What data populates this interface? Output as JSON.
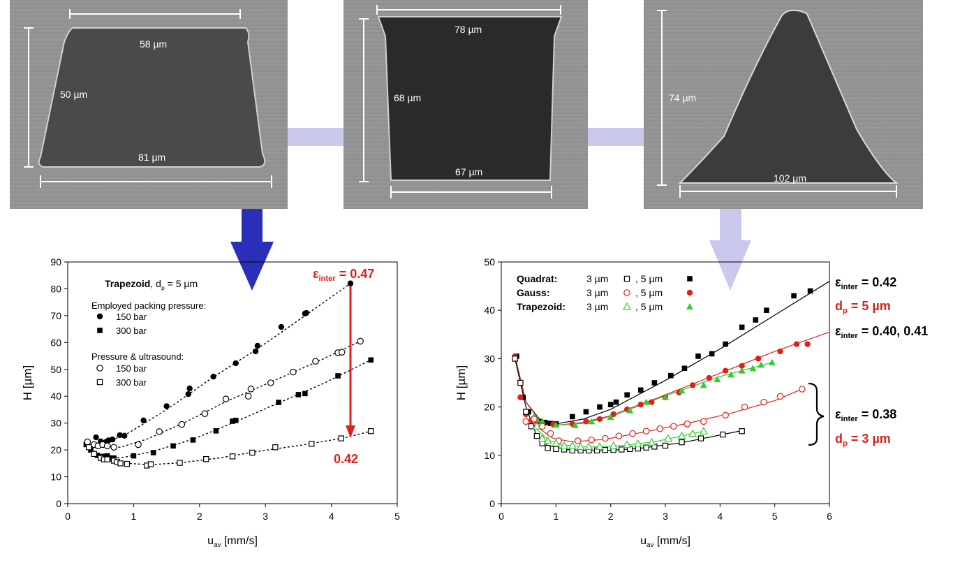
{
  "sem_images": [
    {
      "top_width": "58 µm",
      "height": "50 µm",
      "bottom_width": "81 µm"
    },
    {
      "top_width": "78 µm",
      "height": "68 µm",
      "bottom_width": "67 µm"
    },
    {
      "height": "74 µm",
      "bottom_width": "102 µm"
    }
  ],
  "colors": {
    "dark_arrow": "#2b2fb8",
    "light_arrow": "#c9c9ee",
    "red": "#e0201b",
    "green": "#33cc33",
    "black": "#000000"
  },
  "chart_data": [
    {
      "type": "scatter",
      "xlabel_main": "u",
      "xlabel_sub": "av",
      "xlabel_unit": "[mm/s]",
      "ylabel": "H  [µm]",
      "xlim": [
        0,
        5
      ],
      "ylim": [
        0,
        90
      ],
      "xticks": [
        "0",
        "1",
        "2",
        "3",
        "4",
        "5"
      ],
      "yticks": [
        "0",
        "10",
        "20",
        "30",
        "40",
        "50",
        "60",
        "70",
        "80",
        "90"
      ],
      "legend": {
        "title_bold": "Trapezoid",
        "title_rest": ", d",
        "title_sub": "p",
        "title_end": " = 5 µm",
        "group1": "Employed packing pressure:",
        "group2": "Pressure & ultrasound:",
        "entries": [
          "150 bar",
          "300 bar",
          "150 bar",
          "300 bar"
        ]
      },
      "annot_top_eps": "ε",
      "annot_top_sub": "inter",
      "annot_top_val": " = 0.47",
      "annot_bottom": "0.42",
      "series": [
        {
          "marker": "filled-circle",
          "x": [
            0.29,
            0.43,
            0.5,
            0.58,
            0.62,
            0.68,
            0.79,
            0.86,
            1.15,
            1.5,
            1.83,
            1.85,
            2.21,
            2.55,
            2.85,
            2.88,
            3.24,
            3.6,
            3.62,
            4.29
          ],
          "y": [
            22.5,
            24.7,
            23.2,
            23,
            23.6,
            23.9,
            25.5,
            25.3,
            31,
            36.3,
            40.8,
            42.9,
            47.3,
            52.3,
            56.7,
            58.8,
            65.8,
            70.8,
            71,
            82
          ]
        },
        {
          "marker": "filled-square",
          "x": [
            0.28,
            0.35,
            0.4,
            0.45,
            0.5,
            0.55,
            0.6,
            0.64,
            0.7,
            1.0,
            1.3,
            1.6,
            1.9,
            2.25,
            2.5,
            2.55,
            3.2,
            3.5,
            3.6,
            4.1,
            4.6
          ],
          "y": [
            22,
            20,
            18.5,
            18,
            17.5,
            17.6,
            17.8,
            17,
            17,
            17.8,
            19,
            21.5,
            23.7,
            27.1,
            30.7,
            31,
            37.7,
            40.6,
            41,
            47.6,
            53.5
          ]
        },
        {
          "marker": "open-circle",
          "x": [
            0.3,
            0.4,
            0.46,
            0.53,
            0.6,
            0.7,
            1.07,
            1.39,
            1.73,
            2.08,
            2.4,
            2.74,
            2.78,
            3.08,
            3.42,
            3.76,
            4.1,
            4.16,
            4.44
          ],
          "y": [
            23,
            22,
            21.5,
            22,
            21.5,
            21,
            22,
            26.8,
            29.5,
            33.5,
            39,
            40,
            42.7,
            45,
            49,
            53,
            56.2,
            56.4,
            60.5
          ]
        },
        {
          "marker": "open-square",
          "x": [
            0.32,
            0.4,
            0.5,
            0.55,
            0.6,
            0.7,
            0.75,
            0.8,
            0.9,
            1.2,
            1.26,
            1.7,
            2.1,
            2.5,
            2.8,
            3.15,
            3.7,
            4.15,
            4.6
          ],
          "y": [
            21,
            18.5,
            17,
            16.5,
            16.5,
            16,
            15.5,
            15,
            14.8,
            14.2,
            14.7,
            15.2,
            16.6,
            17.6,
            19,
            21,
            22.3,
            24.3,
            27
          ]
        }
      ]
    },
    {
      "type": "scatter",
      "xlabel_main": "u",
      "xlabel_sub": "av",
      "xlabel_unit": "[mm/s]",
      "ylabel": "H  [µm]",
      "xlim": [
        0,
        6
      ],
      "ylim": [
        0,
        50
      ],
      "xticks": [
        "0",
        "1",
        "2",
        "3",
        "4",
        "5",
        "6"
      ],
      "yticks": [
        "0",
        "10",
        "20",
        "30",
        "40",
        "50"
      ],
      "legend": {
        "rows": [
          {
            "name": "Quadrat:",
            "a": "3 µm",
            "b": ",  5 µm"
          },
          {
            "name": "Gauss:",
            "a": "3 µm",
            "b": ",  5 µm"
          },
          {
            "name": "Trapezoid:",
            "a": "3 µm",
            "b": ",  5 µm"
          }
        ]
      },
      "annotations": [
        {
          "eps": "ε",
          "sub": "inter",
          "val": " = 0.42"
        },
        {
          "d": "d",
          "sub": "p",
          "val": " = 5 µm"
        },
        {
          "eps": "ε",
          "sub": "inter",
          "val": " = 0.40, 0.41"
        },
        {
          "eps": "ε",
          "sub": "inter",
          "val": " = 0.38"
        },
        {
          "d": "d",
          "sub": "p",
          "val": " = 3 µm"
        }
      ],
      "series": [
        {
          "marker": "filled-square",
          "color": "#000000",
          "x": [
            0.28,
            0.4,
            0.5,
            0.6,
            0.7,
            0.8,
            0.9,
            1.0,
            1.3,
            1.55,
            1.8,
            2.0,
            2.1,
            2.3,
            2.55,
            2.8,
            3.1,
            3.35,
            3.6,
            3.85,
            4.1,
            4.4,
            4.65,
            4.85,
            5.35,
            5.65
          ],
          "y": [
            30.5,
            22,
            19,
            17.5,
            17,
            16.8,
            16.6,
            16.5,
            18,
            19,
            20,
            20.5,
            21,
            22.5,
            23.5,
            25,
            26.5,
            28,
            30.5,
            31,
            33,
            36.5,
            38,
            40,
            43,
            44
          ]
        },
        {
          "marker": "filled-circle",
          "color": "#e0201b",
          "x": [
            0.25,
            0.35,
            0.45,
            0.55,
            0.65,
            0.75,
            0.95,
            1.3,
            1.55,
            1.8,
            2.05,
            2.3,
            2.55,
            2.75,
            3.0,
            3.25,
            3.5,
            3.8,
            4.1,
            4.4,
            4.7,
            5.1,
            5.4,
            5.6
          ],
          "y": [
            30.5,
            22,
            18.5,
            17.2,
            17,
            16.5,
            16.4,
            16.5,
            17,
            17.5,
            18.5,
            19.5,
            20.5,
            21,
            22,
            23,
            24.5,
            26,
            27.5,
            28.5,
            30,
            31.5,
            33,
            33
          ]
        },
        {
          "marker": "filled-triangle",
          "color": "#33cc33",
          "x": [
            0.6,
            0.65,
            0.75,
            1.0,
            1.35,
            1.65,
            2.0,
            2.35,
            2.65,
            3.0,
            3.3,
            3.7,
            3.95,
            4.2,
            4.4,
            4.6,
            4.75,
            4.95
          ],
          "y": [
            18,
            17.5,
            17,
            16.3,
            16.2,
            17,
            17.9,
            19.3,
            21,
            22,
            23.4,
            24.5,
            25.7,
            26.7,
            27.5,
            28,
            28.7,
            29.2
          ]
        },
        {
          "marker": "open-square",
          "color": "#000000",
          "x": [
            0.25,
            0.35,
            0.45,
            0.55,
            0.65,
            0.75,
            0.85,
            1.0,
            1.15,
            1.3,
            1.45,
            1.6,
            1.75,
            1.9,
            2.05,
            2.2,
            2.35,
            2.5,
            2.65,
            2.8,
            3.0,
            3.3,
            3.65,
            4.05,
            4.4
          ],
          "y": [
            30,
            25,
            19,
            16,
            14,
            12.5,
            11.5,
            11.3,
            11.2,
            11,
            11,
            11,
            11,
            11.1,
            11.1,
            11.2,
            11.3,
            11.4,
            11.6,
            11.8,
            12,
            12.7,
            13.5,
            14.3,
            15
          ]
        },
        {
          "marker": "open-circle",
          "color": "#e0201b",
          "x": [
            0.45,
            0.6,
            0.75,
            0.9,
            1.05,
            1.4,
            1.65,
            1.9,
            2.15,
            2.4,
            2.65,
            2.9,
            3.15,
            3.4,
            3.7,
            4.1,
            4.45,
            4.8,
            5.1,
            5.5
          ],
          "y": [
            17,
            17.5,
            16,
            14.5,
            13,
            13,
            13.2,
            13.5,
            14,
            14.5,
            15,
            15.5,
            16,
            16.5,
            17,
            18.3,
            20,
            21,
            22.2,
            23.7
          ]
        },
        {
          "marker": "open-triangle",
          "color": "#33cc33",
          "x": [
            0.65,
            0.75,
            0.85,
            1.0,
            1.15,
            1.3,
            1.45,
            1.6,
            1.8,
            2.05,
            2.3,
            2.5,
            2.75,
            3.05,
            3.3,
            3.5,
            3.7
          ],
          "y": [
            16,
            13.5,
            13,
            12.5,
            12,
            12,
            11.8,
            11.8,
            11.8,
            12,
            12.2,
            12.4,
            12.7,
            13.5,
            14,
            14.5,
            15
          ]
        }
      ]
    }
  ]
}
